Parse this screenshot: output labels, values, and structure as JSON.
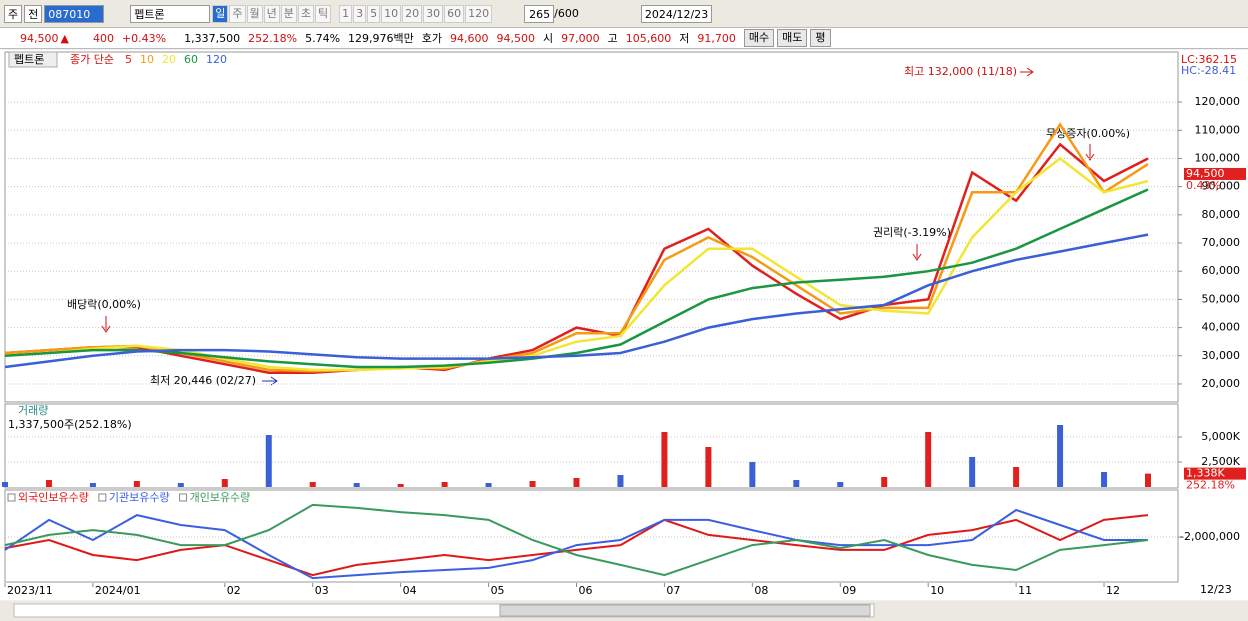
{
  "toolbar": {
    "market": "주",
    "prefix": "전",
    "code": "087010",
    "name": "펩트론",
    "periods": [
      "일",
      "주",
      "월",
      "년",
      "분",
      "초",
      "틱"
    ],
    "intervals": [
      "1",
      "3",
      "5",
      "10",
      "20",
      "30",
      "60",
      "120"
    ],
    "count": "265",
    "max": "/600",
    "date": "2024/12/23"
  },
  "quote": {
    "price": "94,500",
    "change": "400",
    "change_pct": "+0.43%",
    "volume": "1,337,500",
    "volume_ratio": "252.18%",
    "turnover": "5.74%",
    "amount": "129,976백만",
    "ask_label": "호가",
    "ask": "94,600",
    "bid": "94,500",
    "open_label": "시",
    "open": "97,000",
    "high_label": "고",
    "high": "105,600",
    "low_label": "저",
    "low": "91,700",
    "buttons": [
      "매수",
      "매도",
      "평"
    ]
  },
  "tab": "펩트론",
  "chart_data": [
    {
      "type": "line",
      "legend_label": "종가 단순",
      "categories": [
        "2023/11",
        null,
        "2024/01",
        null,
        null,
        "02",
        null,
        "03",
        null,
        "04",
        null,
        "05",
        null,
        "06",
        null,
        "07",
        null,
        "08",
        null,
        "09",
        null,
        "10",
        null,
        "11",
        null,
        "12",
        null
      ],
      "series": [
        {
          "name": "5",
          "color": "#e0201e",
          "values": [
            31000,
            32000,
            33000,
            33000,
            30000,
            27000,
            24000,
            24000,
            25000,
            26000,
            25000,
            29000,
            32000,
            40000,
            37000,
            68000,
            75000,
            62000,
            52000,
            43000,
            48000,
            50000,
            95000,
            85000,
            105000,
            92000,
            100000
          ]
        },
        {
          "name": "10",
          "color": "#f59a12",
          "values": [
            31000,
            32000,
            33000,
            33500,
            31000,
            28000,
            25000,
            24500,
            25000,
            26000,
            25500,
            28500,
            31000,
            38000,
            38000,
            64000,
            72000,
            65000,
            55000,
            45000,
            47000,
            47000,
            88000,
            88000,
            112000,
            88000,
            98000
          ]
        },
        {
          "name": "20",
          "color": "#f2e635",
          "values": [
            30000,
            31000,
            32500,
            33500,
            32000,
            29000,
            26000,
            25000,
            25000,
            25500,
            26000,
            28000,
            30000,
            35000,
            37000,
            55000,
            68000,
            68000,
            58000,
            48000,
            46000,
            45000,
            72000,
            88000,
            100000,
            88000,
            92000
          ]
        },
        {
          "name": "60",
          "color": "#1a9641",
          "values": [
            30000,
            31000,
            32000,
            32000,
            31000,
            29500,
            28000,
            27000,
            26000,
            26000,
            26500,
            27500,
            29000,
            31000,
            34000,
            42000,
            50000,
            54000,
            56000,
            57000,
            58000,
            60000,
            63000,
            68000,
            75000,
            82000,
            89000
          ]
        },
        {
          "name": "120",
          "color": "#3a5fd6",
          "values": [
            26000,
            28000,
            30000,
            31500,
            32000,
            32000,
            31500,
            30500,
            29500,
            29000,
            29000,
            29000,
            29500,
            30000,
            31000,
            35000,
            40000,
            43000,
            45000,
            46500,
            48000,
            55000,
            60000,
            64000,
            67000,
            70000,
            73000
          ]
        }
      ],
      "ylim": [
        13600,
        136700
      ],
      "yticks": [
        {
          "value": 20000,
          "label": "20,000"
        },
        {
          "value": 30000,
          "label": "30,000"
        },
        {
          "value": 40000,
          "label": "40,000"
        },
        {
          "value": 50000,
          "label": "50,000"
        },
        {
          "value": 60000,
          "label": "60,000"
        },
        {
          "value": 70000,
          "label": "70,000"
        },
        {
          "value": 80000,
          "label": "80,000"
        },
        {
          "value": 90000,
          "label": "90,000"
        },
        {
          "value": 100000,
          "label": "100,000"
        },
        {
          "value": 110000,
          "label": "110,000"
        },
        {
          "value": 120000,
          "label": "120,000"
        }
      ],
      "grid": true,
      "lc": "LC:362.15",
      "hc": "HC:-28.41",
      "current": {
        "value": 94500,
        "label": "94,500"
      },
      "current_change": "0.43%",
      "annotations": [
        "배당락(0,00%)",
        "최저 20,446 (02/27)",
        "권리락(-3.19%)",
        "최고 132,000 (11/18)",
        "무상증자(0.00%)"
      ]
    },
    {
      "type": "bar",
      "title": "거래량",
      "subtitle": "1,337,500주(252.18%)",
      "values": [
        500000,
        700000,
        400000,
        600000,
        400000,
        800000,
        5200000,
        500000,
        400000,
        300000,
        500000,
        400000,
        600000,
        900000,
        1200000,
        5500000,
        4000000,
        2500000,
        700000,
        500000,
        1000000,
        5500000,
        3000000,
        2000000,
        6200000,
        1500000,
        1337500
      ],
      "colors": [
        "#3a5fd6",
        "#e0201e",
        "#3a5fd6",
        "#e0201e",
        "#3a5fd6",
        "#e0201e",
        "#3a5fd6",
        "#e0201e",
        "#3a5fd6",
        "#e0201e",
        "#e0201e",
        "#3a5fd6",
        "#e0201e",
        "#e0201e",
        "#3a5fd6",
        "#e0201e",
        "#e0201e",
        "#3a5fd6",
        "#3a5fd6",
        "#3a5fd6",
        "#e0201e",
        "#e0201e",
        "#3a5fd6",
        "#e0201e",
        "#3a5fd6",
        "#3a5fd6",
        "#e0201e"
      ],
      "ylim": [
        0,
        8200000
      ],
      "yticks": [
        {
          "value": 2500000,
          "label": "2,500K"
        },
        {
          "value": 5000000,
          "label": "5,000K"
        }
      ],
      "grid": true,
      "current": {
        "value": 1338000,
        "label": "1,338K"
      },
      "current_ratio": "252.18%"
    },
    {
      "type": "line",
      "series": [
        {
          "name": "외국인보유수량",
          "color": "#e01818",
          "values": [
            -2370000,
            -2100000,
            -2600000,
            -2770000,
            -2430000,
            -2270000,
            -2770000,
            -3270000,
            -2930000,
            -2770000,
            -2600000,
            -2770000,
            -2600000,
            -2430000,
            -2270000,
            -1430000,
            -1930000,
            -2100000,
            -2270000,
            -2430000,
            -2430000,
            -1930000,
            -1770000,
            -1430000,
            -2100000,
            -1430000,
            -1270000
          ]
        },
        {
          "name": "기관보유수량",
          "color": "#3b5fe0",
          "values": [
            -2430000,
            -1430000,
            -2100000,
            -1270000,
            -1600000,
            -1770000,
            -2600000,
            -3370000,
            -3270000,
            -3170000,
            -3100000,
            -3030000,
            -2770000,
            -2270000,
            -2100000,
            -1430000,
            -1430000,
            -1770000,
            -2100000,
            -2270000,
            -2270000,
            -2270000,
            -2100000,
            -1100000,
            -1600000,
            -2100000,
            -2100000
          ]
        },
        {
          "name": "개인보유수량",
          "color": "#3a9a5c",
          "values": [
            -2270000,
            -1930000,
            -1770000,
            -1930000,
            -2270000,
            -2270000,
            -1770000,
            -930000,
            -1030000,
            -1170000,
            -1270000,
            -1430000,
            -2100000,
            -2600000,
            -2930000,
            -3270000,
            -2770000,
            -2270000,
            -2100000,
            -2370000,
            -2100000,
            -2600000,
            -2930000,
            -3100000,
            -2430000,
            -2270000,
            -2100000
          ]
        }
      ],
      "ylim": [
        -3500000,
        -500000
      ],
      "yticks": [
        {
          "value": -2000000,
          "label": "-2,000,000"
        }
      ],
      "grid": true,
      "x_end_label": "12/23"
    }
  ]
}
